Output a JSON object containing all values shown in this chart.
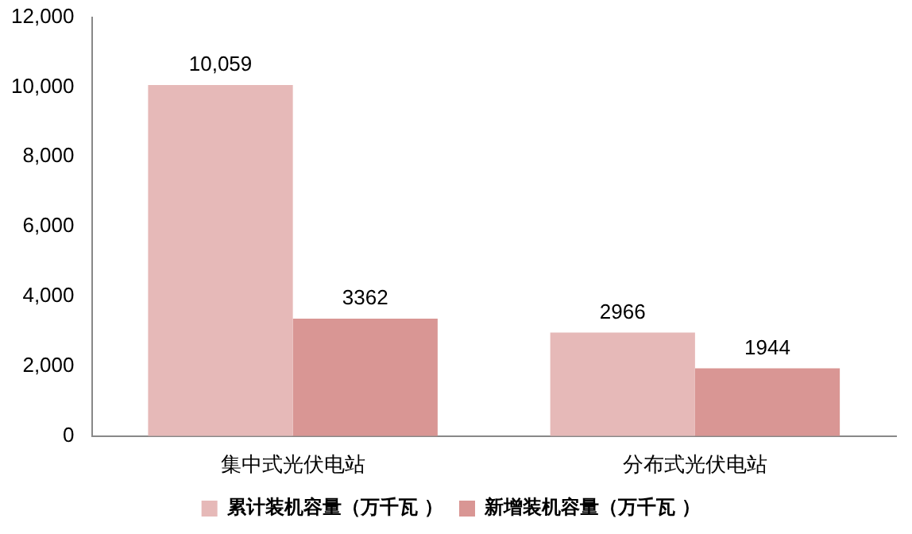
{
  "chart_data": {
    "type": "bar",
    "categories": [
      "集中式光伏电站",
      "分布式光伏电站"
    ],
    "series": [
      {
        "name": "累计装机容量（万千瓦 ）",
        "color": "#e6b9b8",
        "values": [
          10059,
          2966
        ],
        "value_labels": [
          "10,059",
          "2966"
        ]
      },
      {
        "name": "新增装机容量（万千瓦 ）",
        "color": "#d99694",
        "values": [
          3362,
          1944
        ],
        "value_labels": [
          "3362",
          "1944"
        ]
      }
    ],
    "ylim": [
      0,
      12000
    ],
    "yticks": [
      {
        "value": 0,
        "label": "0"
      },
      {
        "value": 2000,
        "label": "2,000"
      },
      {
        "value": 4000,
        "label": "4,000"
      },
      {
        "value": 6000,
        "label": "6,000"
      },
      {
        "value": 8000,
        "label": "8,000"
      },
      {
        "value": 10000,
        "label": "10,000"
      },
      {
        "value": 12000,
        "label": "12,000"
      }
    ],
    "grid": false,
    "legend": "bottom"
  }
}
